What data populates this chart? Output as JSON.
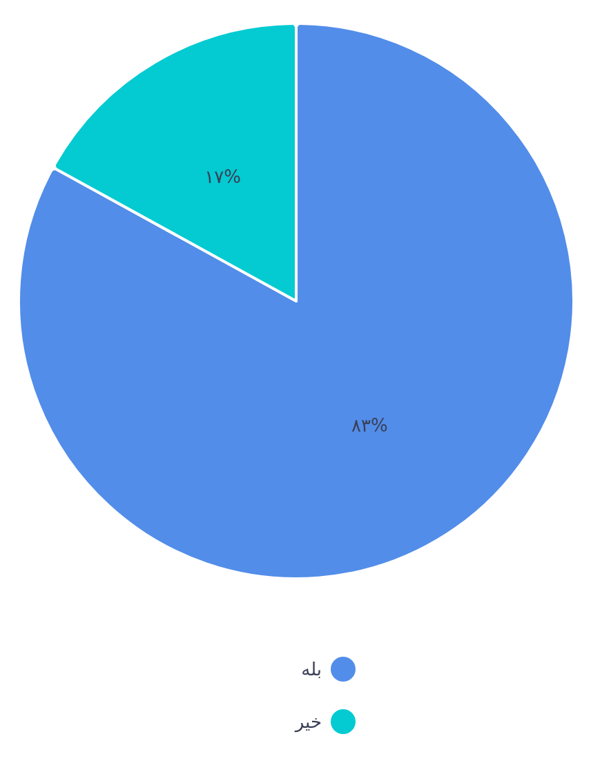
{
  "chart_data": {
    "type": "pie",
    "categories": [
      "بله",
      "خیر"
    ],
    "values": [
      83,
      17
    ],
    "value_labels": [
      "۸۳%",
      "۱۷%"
    ],
    "colors": [
      "#528de9",
      "#04cad1"
    ],
    "legend": "bottom"
  }
}
